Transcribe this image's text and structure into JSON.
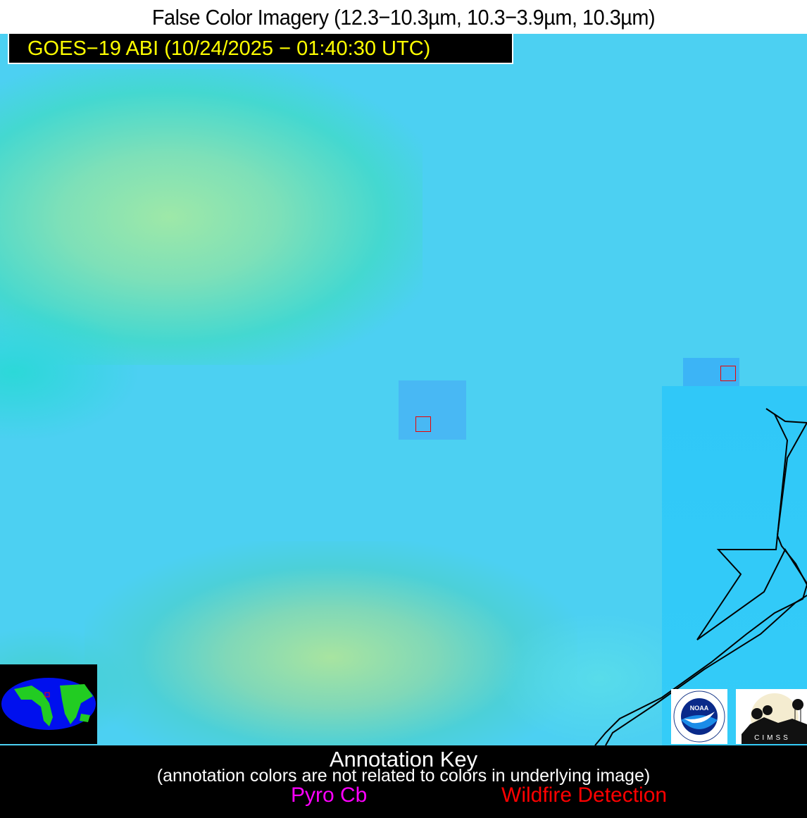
{
  "header": {
    "title": "False Color Imagery (12.3−10.3µm, 10.3−3.9µm, 10.3µm)",
    "satellite_label": "GOES−19 ABI (10/24/2025 − 01:40:30 UTC)"
  },
  "map": {
    "fire_detection_boxes": 2,
    "fire_box_color": "#ff0000",
    "coastline_color": "#000000"
  },
  "logos": {
    "noaa": "NOAA",
    "noaa_ring": "NATIONAL OCEANIC AND ATMOSPHERIC ADMINISTRATION · U.S. DEPARTMENT OF COMMERCE",
    "cimss": "CIMSS"
  },
  "annotation_key": {
    "title": "Annotation Key",
    "subtitle": "(annotation colors are not related to colors in underlying image)",
    "items": [
      {
        "label": "Pyro Cb",
        "color": "#ff00ff"
      },
      {
        "label": "Wildfire Detection",
        "color": "#ff0000"
      }
    ]
  }
}
